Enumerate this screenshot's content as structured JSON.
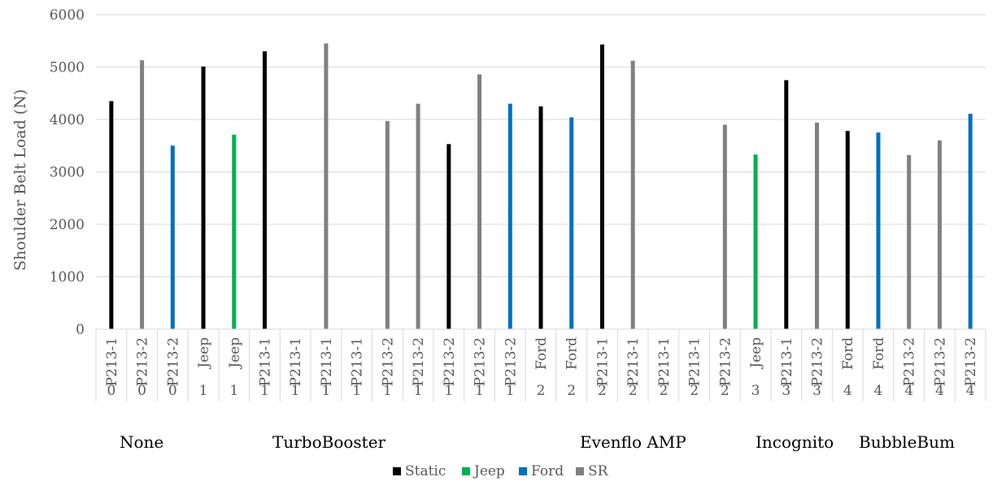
{
  "chart_data": {
    "type": "bar",
    "title": "",
    "xlabel": "",
    "ylabel": "Shoulder Belt Load (N)",
    "ylim": [
      0,
      6000
    ],
    "yticks": [
      0,
      1000,
      2000,
      3000,
      4000,
      5000,
      6000
    ],
    "grid": true,
    "legend_position": "bottom",
    "colors": {
      "Static": "#000000",
      "Jeep": "#00b050",
      "Ford": "#0070c0",
      "SR": "#808080"
    },
    "legend": [
      "Static",
      "Jeep",
      "Ford",
      "SR"
    ],
    "categories": [
      {
        "label": "P213-1",
        "level": "0"
      },
      {
        "label": "P213-2",
        "level": "0"
      },
      {
        "label": "P213-2",
        "level": "0"
      },
      {
        "label": "Jeep",
        "level": "1"
      },
      {
        "label": "Jeep",
        "level": "1"
      },
      {
        "label": "P213-1",
        "level": "1"
      },
      {
        "label": "P213-1",
        "level": "1"
      },
      {
        "label": "P213-1",
        "level": "1"
      },
      {
        "label": "P213-1",
        "level": "1"
      },
      {
        "label": "P213-2",
        "level": "1"
      },
      {
        "label": "P213-2",
        "level": "1"
      },
      {
        "label": "P213-2",
        "level": "1"
      },
      {
        "label": "P213-2",
        "level": "1"
      },
      {
        "label": "P213-2",
        "level": "1"
      },
      {
        "label": "Ford",
        "level": "2"
      },
      {
        "label": "Ford",
        "level": "2"
      },
      {
        "label": "P213-1",
        "level": "2"
      },
      {
        "label": "P213-1",
        "level": "2"
      },
      {
        "label": "P213-1",
        "level": "2"
      },
      {
        "label": "P213-1",
        "level": "2"
      },
      {
        "label": "P213-2",
        "level": "2"
      },
      {
        "label": "Jeep",
        "level": "3"
      },
      {
        "label": "P213-1",
        "level": "3"
      },
      {
        "label": "P213-2",
        "level": "3"
      },
      {
        "label": "Ford",
        "level": "4"
      },
      {
        "label": "Ford",
        "level": "4"
      },
      {
        "label": "P213-2",
        "level": "4"
      },
      {
        "label": "P213-2",
        "level": "4"
      },
      {
        "label": "P213-2",
        "level": "4"
      }
    ],
    "bars": [
      {
        "category_index": 0,
        "series": "Static",
        "value": 4350
      },
      {
        "category_index": 1,
        "series": "SR",
        "value": 5130
      },
      {
        "category_index": 2,
        "series": "Ford",
        "value": 3500
      },
      {
        "category_index": 3,
        "series": "Static",
        "value": 5010
      },
      {
        "category_index": 4,
        "series": "Jeep",
        "value": 3710
      },
      {
        "category_index": 5,
        "series": "Static",
        "value": 5300
      },
      {
        "category_index": 7,
        "series": "SR",
        "value": 5450
      },
      {
        "category_index": 9,
        "series": "SR",
        "value": 3970
      },
      {
        "category_index": 10,
        "series": "SR",
        "value": 4300
      },
      {
        "category_index": 11,
        "series": "Static",
        "value": 3530
      },
      {
        "category_index": 12,
        "series": "SR",
        "value": 4860
      },
      {
        "category_index": 13,
        "series": "Ford",
        "value": 4300
      },
      {
        "category_index": 14,
        "series": "Static",
        "value": 4250
      },
      {
        "category_index": 15,
        "series": "Ford",
        "value": 4040
      },
      {
        "category_index": 16,
        "series": "Static",
        "value": 5430
      },
      {
        "category_index": 17,
        "series": "SR",
        "value": 5120
      },
      {
        "category_index": 20,
        "series": "SR",
        "value": 3900
      },
      {
        "category_index": 21,
        "series": "Jeep",
        "value": 3330
      },
      {
        "category_index": 22,
        "series": "Static",
        "value": 4750
      },
      {
        "category_index": 23,
        "series": "SR",
        "value": 3940
      },
      {
        "category_index": 24,
        "series": "Static",
        "value": 3780
      },
      {
        "category_index": 25,
        "series": "Ford",
        "value": 3750
      },
      {
        "category_index": 26,
        "series": "SR",
        "value": 3320
      },
      {
        "category_index": 27,
        "series": "SR",
        "value": 3600
      },
      {
        "category_index": 28,
        "series": "Ford",
        "value": 4110
      }
    ],
    "group_labels": [
      {
        "text": "None",
        "start_index": 0,
        "end_index": 2
      },
      {
        "text": "TurboBooster",
        "start_index": 3,
        "end_index": 13
      },
      {
        "text": "Evenflo AMP",
        "start_index": 14,
        "end_index": 20
      },
      {
        "text": "Incognito",
        "start_index": 21,
        "end_index": 23
      },
      {
        "text": "BubbleBum",
        "start_index": 24,
        "end_index": 28
      }
    ]
  }
}
